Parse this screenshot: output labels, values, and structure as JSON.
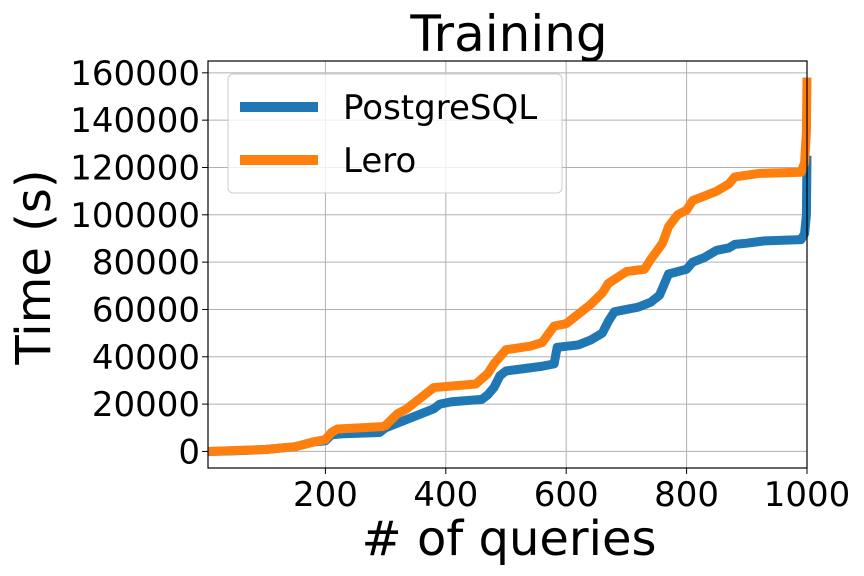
{
  "chart_data": {
    "type": "line",
    "title": "Training",
    "xlabel": "# of queries",
    "ylabel": "Time (s)",
    "xlim": [
      5,
      1000
    ],
    "ylim": [
      -7000,
      165000
    ],
    "x_ticks": [
      200,
      400,
      600,
      800,
      1000
    ],
    "y_ticks": [
      0,
      20000,
      40000,
      60000,
      80000,
      100000,
      120000,
      140000,
      160000
    ],
    "grid": true,
    "legend_position": "top-left",
    "series": [
      {
        "name": "PostgreSQL",
        "color": "#1f77b4",
        "points": [
          [
            5,
            0
          ],
          [
            50,
            300
          ],
          [
            100,
            800
          ],
          [
            150,
            2000
          ],
          [
            180,
            4000
          ],
          [
            200,
            4500
          ],
          [
            210,
            7000
          ],
          [
            230,
            7500
          ],
          [
            290,
            8000
          ],
          [
            300,
            10000
          ],
          [
            330,
            13000
          ],
          [
            350,
            15000
          ],
          [
            380,
            18000
          ],
          [
            390,
            20000
          ],
          [
            410,
            21000
          ],
          [
            460,
            22000
          ],
          [
            470,
            24000
          ],
          [
            480,
            27000
          ],
          [
            490,
            32000
          ],
          [
            500,
            34000
          ],
          [
            530,
            35000
          ],
          [
            560,
            36000
          ],
          [
            580,
            37000
          ],
          [
            585,
            44000
          ],
          [
            620,
            45000
          ],
          [
            640,
            47000
          ],
          [
            660,
            50000
          ],
          [
            670,
            55000
          ],
          [
            680,
            59000
          ],
          [
            700,
            60000
          ],
          [
            720,
            61000
          ],
          [
            740,
            63000
          ],
          [
            755,
            66000
          ],
          [
            770,
            75000
          ],
          [
            800,
            77000
          ],
          [
            810,
            80000
          ],
          [
            830,
            82000
          ],
          [
            850,
            85000
          ],
          [
            870,
            86000
          ],
          [
            880,
            87500
          ],
          [
            900,
            88000
          ],
          [
            930,
            89000
          ],
          [
            990,
            89500
          ],
          [
            996,
            92000
          ],
          [
            999,
            100000
          ],
          [
            1000,
            125000
          ]
        ]
      },
      {
        "name": "Lero",
        "color": "#ff7f0e",
        "points": [
          [
            5,
            0
          ],
          [
            50,
            400
          ],
          [
            100,
            800
          ],
          [
            150,
            2000
          ],
          [
            180,
            4000
          ],
          [
            200,
            5000
          ],
          [
            210,
            8000
          ],
          [
            220,
            9500
          ],
          [
            260,
            10000
          ],
          [
            295,
            10500
          ],
          [
            300,
            11000
          ],
          [
            320,
            16000
          ],
          [
            335,
            18000
          ],
          [
            350,
            21000
          ],
          [
            370,
            25000
          ],
          [
            380,
            27000
          ],
          [
            450,
            28500
          ],
          [
            470,
            33000
          ],
          [
            480,
            37000
          ],
          [
            490,
            40000
          ],
          [
            500,
            43000
          ],
          [
            540,
            44500
          ],
          [
            560,
            46000
          ],
          [
            580,
            53000
          ],
          [
            600,
            54000
          ],
          [
            620,
            58000
          ],
          [
            640,
            62000
          ],
          [
            660,
            67000
          ],
          [
            670,
            71000
          ],
          [
            700,
            76000
          ],
          [
            730,
            77000
          ],
          [
            740,
            81000
          ],
          [
            760,
            88000
          ],
          [
            770,
            95000
          ],
          [
            785,
            100000
          ],
          [
            800,
            102000
          ],
          [
            810,
            106000
          ],
          [
            830,
            108000
          ],
          [
            850,
            110000
          ],
          [
            870,
            113000
          ],
          [
            880,
            116000
          ],
          [
            920,
            117500
          ],
          [
            990,
            118000
          ],
          [
            996,
            122000
          ],
          [
            999,
            135000
          ],
          [
            1000,
            158000
          ]
        ]
      }
    ]
  }
}
